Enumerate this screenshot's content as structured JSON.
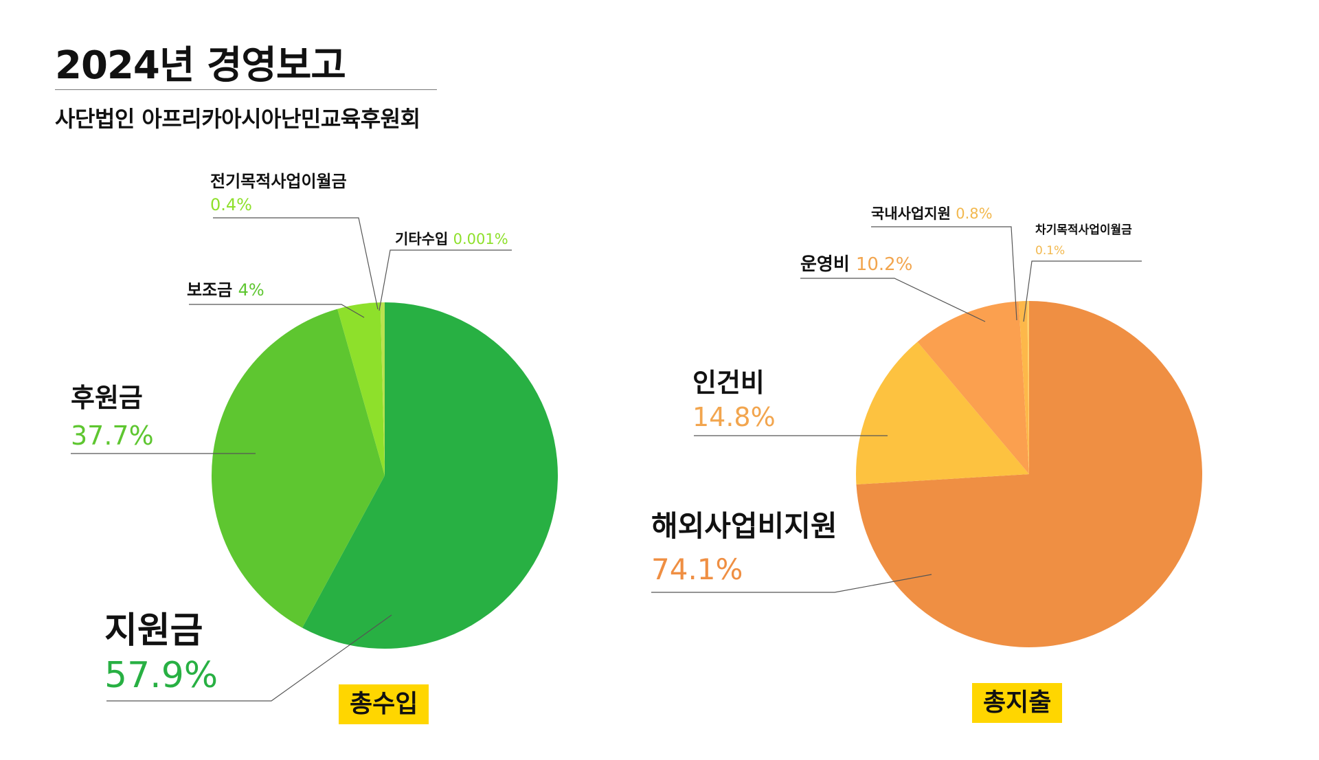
{
  "title": "2024년 경영보고",
  "subtitle": "사단법인 아프리카아시아난민교육후원회",
  "chart_data": [
    {
      "type": "pie",
      "title": "총수입",
      "title_bg": "#FFD600",
      "slices": [
        {
          "label": "지원금",
          "value": 57.9,
          "text": "57.9%",
          "color": "#28B043",
          "text_color": "#28B043"
        },
        {
          "label": "후원금",
          "value": 37.7,
          "text": "37.7%",
          "color": "#5EC630",
          "text_color": "#5EC630"
        },
        {
          "label": "보조금",
          "value": 4,
          "text": "4%",
          "color": "#8EE02B",
          "text_color": "#5EC630"
        },
        {
          "label": "전기목적사업이월금",
          "value": 0.4,
          "text": "0.4%",
          "color": "#B9E24F",
          "text_color": "#8EE02B"
        },
        {
          "label": "기타수입",
          "value": 0.001,
          "text": "0.001%",
          "color": "#C4E870",
          "text_color": "#8EE02B"
        }
      ]
    },
    {
      "type": "pie",
      "title": "총지출",
      "title_bg": "#FFD600",
      "slices": [
        {
          "label": "해외사업비지원",
          "value": 74.1,
          "text": "74.1%",
          "color": "#EF8F43",
          "text_color": "#EF8F43"
        },
        {
          "label": "인건비",
          "value": 14.8,
          "text": "14.8%",
          "color": "#FDC240",
          "text_color": "#F2A54E"
        },
        {
          "label": "운영비",
          "value": 10.2,
          "text": "10.2%",
          "color": "#FBA04F",
          "text_color": "#F2A54E"
        },
        {
          "label": "국내사업지원",
          "value": 0.8,
          "text": "0.8%",
          "color": "#FDB84A",
          "text_color": "#F2B84E"
        },
        {
          "label": "차기목적사업이월금",
          "value": 0.1,
          "text": "0.1%",
          "color": "#FFD36A",
          "text_color": "#F2B84E"
        }
      ]
    }
  ]
}
